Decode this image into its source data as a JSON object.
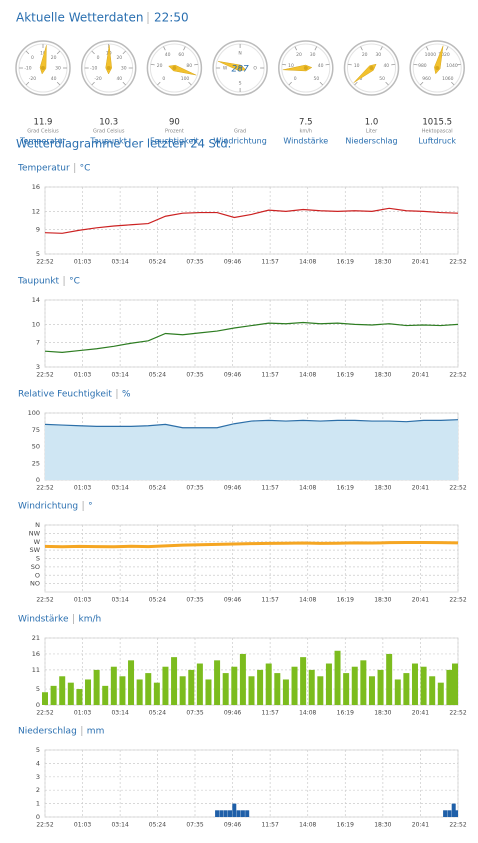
{
  "header": {
    "title": "Aktuelle Wetterdaten",
    "time": "22:50"
  },
  "gauges": [
    {
      "value": 11.9,
      "unit": "Grad Celsius",
      "label": "Temperatur",
      "range": [
        -20,
        40
      ],
      "ticks": [
        -20,
        -10,
        0,
        10,
        20,
        30,
        40
      ]
    },
    {
      "value": 10.3,
      "unit": "Grad Celsius",
      "label": "Taupunkt",
      "range": [
        -20,
        40
      ],
      "ticks": [
        -20,
        -10,
        0,
        10,
        20,
        30,
        40
      ]
    },
    {
      "value": 90,
      "unit": "Prozent",
      "label": "Feuchtigkeit",
      "range": [
        0,
        100
      ],
      "ticks": [
        0,
        20,
        40,
        60,
        80,
        100
      ]
    },
    {
      "value": 287,
      "unit": "Grad",
      "label": "Windrichtung",
      "range": [
        0,
        360
      ],
      "full_circle": true,
      "ticks": [
        {
          "value": 0,
          "label": "N"
        },
        {
          "value": 90,
          "label": "O"
        },
        {
          "value": 180,
          "label": "S"
        },
        {
          "value": 270,
          "label": "W"
        }
      ]
    },
    {
      "value": 7.5,
      "unit": "km/h",
      "label": "Windstärke",
      "range": [
        0,
        50
      ],
      "ticks": [
        0,
        10,
        20,
        30,
        40,
        50
      ]
    },
    {
      "value": 1.0,
      "value_label": "1.0",
      "unit": "Liter",
      "label": "Niederschlag",
      "range": [
        0,
        50
      ],
      "ticks": [
        0,
        10,
        20,
        30,
        40,
        50
      ]
    },
    {
      "value": 1015.5,
      "unit": "Hektopascal",
      "label": "Luftdruck",
      "range": [
        960,
        1060
      ],
      "ticks": [
        960,
        980,
        1000,
        1020,
        1040,
        1060
      ]
    }
  ],
  "section_title": "Wetterdiagramme der letzten 24 Std.",
  "chart_data": [
    {
      "type": "line",
      "title": "Temperatur",
      "unit": "°C",
      "color": "#cc2222",
      "grid": true,
      "x": [
        0,
        60,
        120,
        180,
        240,
        300,
        360,
        420,
        480,
        540,
        600,
        660,
        720,
        780,
        840,
        900,
        960,
        1020,
        1080,
        1140,
        1200,
        1260,
        1320,
        1380,
        1440
      ],
      "values": [
        8.5,
        8.4,
        8.9,
        9.3,
        9.6,
        9.8,
        10.0,
        11.2,
        11.7,
        11.8,
        11.8,
        11.0,
        11.5,
        12.2,
        12.0,
        12.3,
        12.1,
        12.0,
        12.1,
        12.0,
        12.5,
        12.1,
        12.0,
        11.8,
        11.7
      ],
      "xlim": [
        0,
        1440
      ],
      "xticks": [
        {
          "value": 0,
          "label": "22:52"
        },
        {
          "value": 131,
          "label": "01:03"
        },
        {
          "value": 262,
          "label": "03:14"
        },
        {
          "value": 392,
          "label": "05:24"
        },
        {
          "value": 523,
          "label": "07:35"
        },
        {
          "value": 654,
          "label": "09:46"
        },
        {
          "value": 785,
          "label": "11:57"
        },
        {
          "value": 916,
          "label": "14:08"
        },
        {
          "value": 1047,
          "label": "16:19"
        },
        {
          "value": 1178,
          "label": "18:30"
        },
        {
          "value": 1309,
          "label": "20:41"
        },
        {
          "value": 1440,
          "label": "22:52"
        }
      ],
      "ylim": [
        5,
        16
      ],
      "yticks": [
        5,
        9,
        12,
        16
      ]
    },
    {
      "type": "line",
      "title": "Taupunkt",
      "unit": "°C",
      "color": "#2e7d22",
      "grid": true,
      "x": [
        0,
        60,
        120,
        180,
        240,
        300,
        360,
        420,
        480,
        540,
        600,
        660,
        720,
        780,
        840,
        900,
        960,
        1020,
        1080,
        1140,
        1200,
        1260,
        1320,
        1380,
        1440
      ],
      "values": [
        5.6,
        5.4,
        5.7,
        6.0,
        6.4,
        6.9,
        7.3,
        8.5,
        8.3,
        8.6,
        8.9,
        9.4,
        9.8,
        10.2,
        10.1,
        10.3,
        10.1,
        10.2,
        10.0,
        9.9,
        10.1,
        9.8,
        9.9,
        9.8,
        10.0
      ],
      "xlim": [
        0,
        1440
      ],
      "xticks": [
        {
          "value": 0,
          "label": "22:52"
        },
        {
          "value": 131,
          "label": "01:03"
        },
        {
          "value": 262,
          "label": "03:14"
        },
        {
          "value": 392,
          "label": "05:24"
        },
        {
          "value": 523,
          "label": "07:35"
        },
        {
          "value": 654,
          "label": "09:46"
        },
        {
          "value": 785,
          "label": "11:57"
        },
        {
          "value": 916,
          "label": "14:08"
        },
        {
          "value": 1047,
          "label": "16:19"
        },
        {
          "value": 1178,
          "label": "18:30"
        },
        {
          "value": 1309,
          "label": "20:41"
        },
        {
          "value": 1440,
          "label": "22:52"
        }
      ],
      "ylim": [
        3,
        14
      ],
      "yticks": [
        3,
        7,
        10,
        14
      ]
    },
    {
      "type": "area",
      "title": "Relative Feuchtigkeit",
      "unit": "%",
      "color": "#2c6fa8",
      "fill": "#cfe6f3",
      "grid": true,
      "x": [
        0,
        60,
        120,
        180,
        240,
        300,
        360,
        420,
        480,
        540,
        600,
        660,
        720,
        780,
        840,
        900,
        960,
        1020,
        1080,
        1140,
        1200,
        1260,
        1320,
        1380,
        1440
      ],
      "values": [
        83,
        82,
        81,
        80,
        80,
        80,
        81,
        83,
        78,
        78,
        78,
        84,
        88,
        89,
        88,
        89,
        88,
        89,
        89,
        88,
        88,
        87,
        89,
        89,
        90
      ],
      "xlim": [
        0,
        1440
      ],
      "xticks": [
        {
          "value": 0,
          "label": "22:52"
        },
        {
          "value": 131,
          "label": "01:03"
        },
        {
          "value": 262,
          "label": "03:14"
        },
        {
          "value": 392,
          "label": "05:24"
        },
        {
          "value": 523,
          "label": "07:35"
        },
        {
          "value": 654,
          "label": "09:46"
        },
        {
          "value": 785,
          "label": "11:57"
        },
        {
          "value": 916,
          "label": "14:08"
        },
        {
          "value": 1047,
          "label": "16:19"
        },
        {
          "value": 1178,
          "label": "18:30"
        },
        {
          "value": 1309,
          "label": "20:41"
        },
        {
          "value": 1440,
          "label": "22:52"
        }
      ],
      "ylim": [
        0,
        100
      ],
      "yticks": [
        0,
        25,
        50,
        75,
        100
      ]
    },
    {
      "type": "line",
      "title": "Windrichtung",
      "unit": "°",
      "color": "#f5a623",
      "grid": true,
      "line_width": 3,
      "x": [
        0,
        60,
        120,
        180,
        240,
        300,
        360,
        420,
        480,
        540,
        600,
        660,
        720,
        780,
        840,
        900,
        960,
        1020,
        1080,
        1140,
        1200,
        1260,
        1320,
        1380,
        1440
      ],
      "values": [
        245,
        243,
        245,
        244,
        243,
        246,
        244,
        248,
        252,
        254,
        256,
        258,
        260,
        261,
        262,
        263,
        261,
        262,
        264,
        263,
        265,
        266,
        266,
        265,
        264
      ],
      "xlim": [
        0,
        1440
      ],
      "xticks": [
        {
          "value": 0,
          "label": "22:52"
        },
        {
          "value": 131,
          "label": "01:03"
        },
        {
          "value": 262,
          "label": "03:14"
        },
        {
          "value": 392,
          "label": "05:24"
        },
        {
          "value": 523,
          "label": "07:35"
        },
        {
          "value": 654,
          "label": "09:46"
        },
        {
          "value": 785,
          "label": "11:57"
        },
        {
          "value": 916,
          "label": "14:08"
        },
        {
          "value": 1047,
          "label": "16:19"
        },
        {
          "value": 1178,
          "label": "18:30"
        },
        {
          "value": 1309,
          "label": "20:41"
        },
        {
          "value": 1440,
          "label": "22:52"
        }
      ],
      "ylim": [
        0,
        360
      ],
      "yticks": [
        {
          "value": 360,
          "label": "N"
        },
        {
          "value": 315,
          "label": "NW"
        },
        {
          "value": 270,
          "label": "W"
        },
        {
          "value": 225,
          "label": "SW"
        },
        {
          "value": 180,
          "label": "S"
        },
        {
          "value": 135,
          "label": "SO"
        },
        {
          "value": 90,
          "label": "O"
        },
        {
          "value": 45,
          "label": "NO"
        }
      ]
    },
    {
      "type": "bar",
      "title": "Windstärke",
      "unit": "km/h",
      "color": "#7cbc1e",
      "grid": true,
      "bar_width": 6,
      "x": [
        0,
        30,
        60,
        90,
        120,
        150,
        180,
        210,
        240,
        270,
        300,
        330,
        360,
        390,
        420,
        450,
        480,
        510,
        540,
        570,
        600,
        630,
        660,
        690,
        720,
        750,
        780,
        810,
        840,
        870,
        900,
        930,
        960,
        990,
        1020,
        1050,
        1080,
        1110,
        1140,
        1170,
        1200,
        1230,
        1260,
        1290,
        1320,
        1350,
        1380,
        1410,
        1440
      ],
      "values": [
        4,
        6,
        9,
        7,
        5,
        8,
        11,
        6,
        12,
        9,
        14,
        8,
        10,
        7,
        12,
        15,
        9,
        11,
        13,
        8,
        14,
        10,
        12,
        16,
        9,
        11,
        13,
        10,
        8,
        12,
        15,
        11,
        9,
        13,
        17,
        10,
        12,
        14,
        9,
        11,
        16,
        8,
        10,
        13,
        12,
        9,
        7,
        11,
        13
      ],
      "xlim": [
        0,
        1440
      ],
      "xticks": [
        {
          "value": 0,
          "label": "22:52"
        },
        {
          "value": 131,
          "label": "01:03"
        },
        {
          "value": 262,
          "label": "03:14"
        },
        {
          "value": 392,
          "label": "05:24"
        },
        {
          "value": 523,
          "label": "07:35"
        },
        {
          "value": 654,
          "label": "09:46"
        },
        {
          "value": 785,
          "label": "11:57"
        },
        {
          "value": 916,
          "label": "14:08"
        },
        {
          "value": 1047,
          "label": "16:19"
        },
        {
          "value": 1178,
          "label": "18:30"
        },
        {
          "value": 1309,
          "label": "20:41"
        },
        {
          "value": 1440,
          "label": "22:52"
        }
      ],
      "ylim": [
        0,
        21
      ],
      "yticks": [
        0,
        5,
        11,
        16,
        21
      ]
    },
    {
      "type": "bar",
      "title": "Niederschlag",
      "unit": "mm",
      "color": "#1f5fa8",
      "grid": true,
      "bar_width": 4,
      "x": [
        600,
        615,
        630,
        645,
        660,
        675,
        690,
        705,
        1395,
        1410,
        1425,
        1440
      ],
      "values": [
        0.5,
        0.5,
        0.5,
        0.5,
        1,
        0.5,
        0.5,
        0.5,
        0.5,
        0.5,
        1,
        0.5
      ],
      "xlim": [
        0,
        1440
      ],
      "xticks": [
        {
          "value": 0,
          "label": "22:52"
        },
        {
          "value": 131,
          "label": "01:03"
        },
        {
          "value": 262,
          "label": "03:14"
        },
        {
          "value": 392,
          "label": "05:24"
        },
        {
          "value": 523,
          "label": "07:35"
        },
        {
          "value": 654,
          "label": "09:46"
        },
        {
          "value": 785,
          "label": "11:57"
        },
        {
          "value": 916,
          "label": "14:08"
        },
        {
          "value": 1047,
          "label": "16:19"
        },
        {
          "value": 1178,
          "label": "18:30"
        },
        {
          "value": 1309,
          "label": "20:41"
        },
        {
          "value": 1440,
          "label": "22:52"
        }
      ],
      "ylim": [
        0,
        5
      ],
      "yticks": [
        0,
        1,
        2,
        3,
        4,
        5
      ]
    }
  ]
}
